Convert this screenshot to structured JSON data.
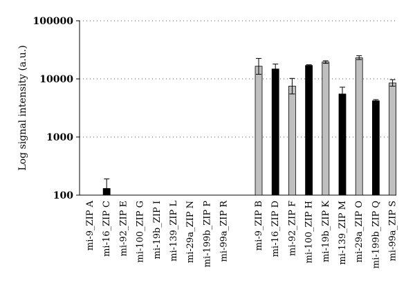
{
  "chart_data": {
    "type": "bar",
    "title": "",
    "xlabel": "",
    "ylabel": "Log signal intensity (a.u.)",
    "yscale": "log",
    "ylim": [
      100,
      100000
    ],
    "yticks": [
      "100",
      "1000",
      "10000",
      "100000"
    ],
    "grid": "horizontal-dotted",
    "legend": "none",
    "colors": {
      "black": "#000000",
      "gray": "#bfbfbf",
      "outline": "#000000"
    },
    "categories": [
      "mi-9_ZIP A",
      "mi-16_ZIP C",
      "mi-92_ZIP E",
      "mi-100_ZIP G",
      "mi-19b_ZIP I",
      "mi-139_ZIP L",
      "mi-29a_ZIP N",
      "mi-199b_ZIP P",
      "mi-99a_ZIP R",
      "mi-9_ZIP B",
      "mi-16_ZIP D",
      "mi-92_ZIP F",
      "mi-100_ZIP H",
      "mi-19b_ZIP K",
      "mi-139_ZIP M",
      "mi-29a_ZIP O",
      "mi-199b_ZIP Q",
      "mi-99a_ZIP S"
    ],
    "values": [
      null,
      130,
      null,
      null,
      null,
      null,
      null,
      null,
      null,
      16500,
      14800,
      7500,
      17000,
      19500,
      5500,
      23000,
      4200,
      8500
    ],
    "error_high": [
      null,
      190,
      null,
      null,
      null,
      null,
      null,
      null,
      null,
      22500,
      18000,
      10200,
      17500,
      20500,
      7200,
      25000,
      4400,
      9700
    ],
    "error_low": [
      null,
      130,
      null,
      null,
      null,
      null,
      null,
      null,
      null,
      12000,
      12000,
      5500,
      16500,
      18500,
      4200,
      21500,
      4000,
      7500
    ],
    "bar_colors": [
      "black",
      "black",
      "black",
      "black",
      "black",
      "black",
      "black",
      "black",
      "black",
      "gray",
      "black",
      "gray",
      "black",
      "gray",
      "black",
      "gray",
      "black",
      "gray"
    ]
  }
}
